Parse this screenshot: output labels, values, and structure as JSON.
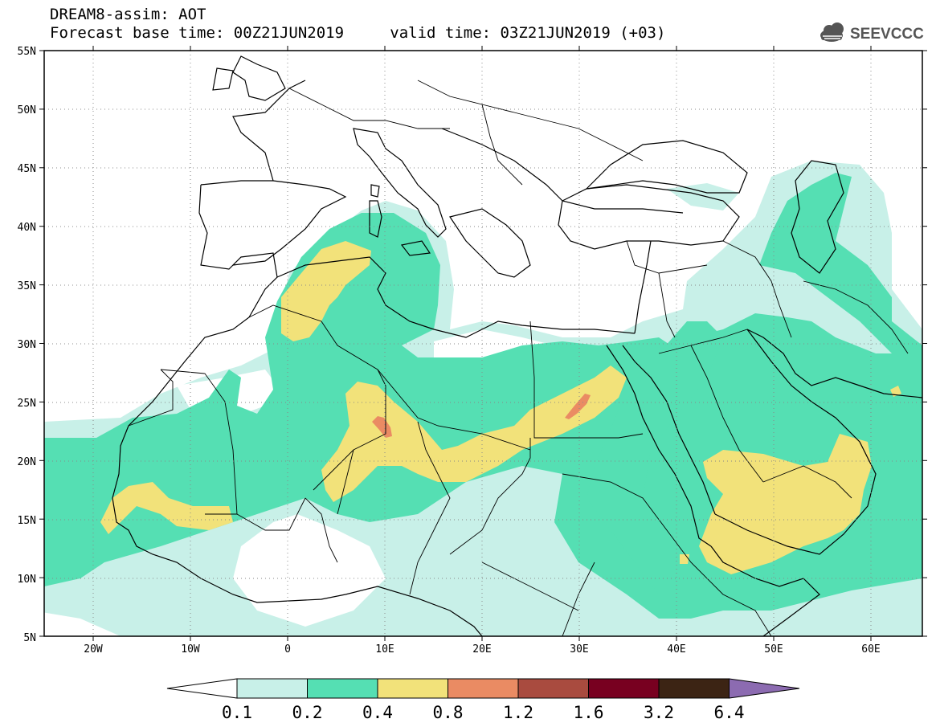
{
  "header": {
    "title": "DREAM8-assim: AOT",
    "base_label": "Forecast base time: 00Z21JUN2019",
    "valid_label": "valid time: 03Z21JUN2019 (+03)"
  },
  "logo": {
    "text": "SEEVCCC",
    "icon": "cloud-icon"
  },
  "map": {
    "variable": "AOT",
    "lon_range": [
      -25,
      65
    ],
    "lat_range": [
      5,
      55
    ],
    "lat_ticks": [
      "55N",
      "50N",
      "45N",
      "40N",
      "35N",
      "30N",
      "25N",
      "20N",
      "15N",
      "10N",
      "5N"
    ],
    "lon_ticks": [
      "20W",
      "10W",
      "0",
      "10E",
      "20E",
      "30E",
      "40E",
      "50E",
      "60E"
    ],
    "grid": "dotted"
  },
  "colorbar": {
    "labels": [
      "0.1",
      "0.2",
      "0.4",
      "0.8",
      "1.2",
      "1.6",
      "3.2",
      "6.4"
    ],
    "colors": [
      "#c8f0e8",
      "#55dfb3",
      "#f2e27a",
      "#ea8b63",
      "#a94b3f",
      "#780020",
      "#3c2414",
      "#8c6bb1"
    ]
  },
  "colors": {
    "level_0_1": "#c8f0e8",
    "level_0_2": "#55dfb3",
    "level_0_4": "#f2e27a",
    "level_0_8": "#ea8b63"
  }
}
